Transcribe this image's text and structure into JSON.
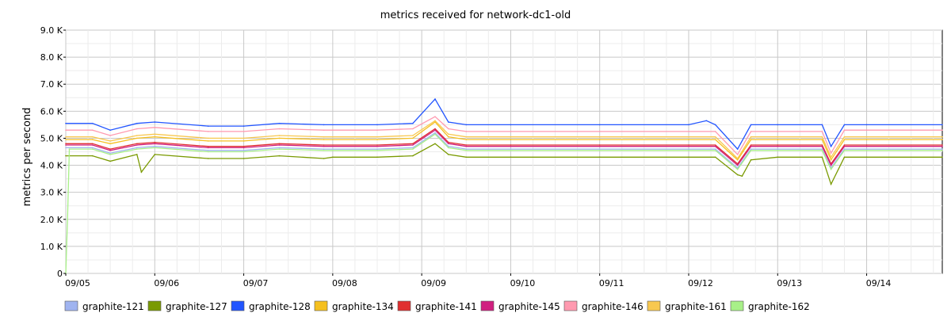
{
  "chart_data": {
    "type": "line",
    "title": "metrics received for network-dc1-old",
    "xlabel": "",
    "ylabel": "metrics per second",
    "ylim": [
      0,
      9000
    ],
    "yticks": [
      {
        "value": 0,
        "label": "0"
      },
      {
        "value": 1000,
        "label": "1.0 K"
      },
      {
        "value": 2000,
        "label": "2.0 K"
      },
      {
        "value": 3000,
        "label": "3.0 K"
      },
      {
        "value": 4000,
        "label": "4.0 K"
      },
      {
        "value": 5000,
        "label": "5.0 K"
      },
      {
        "value": 6000,
        "label": "6.0 K"
      },
      {
        "value": 7000,
        "label": "7.0 K"
      },
      {
        "value": 8000,
        "label": "8.0 K"
      },
      {
        "value": 9000,
        "label": "9.0 K"
      }
    ],
    "xlim": [
      0,
      9.85
    ],
    "xticks": [
      {
        "value": 0,
        "label": "09/05"
      },
      {
        "value": 1,
        "label": "09/06"
      },
      {
        "value": 2,
        "label": "09/07"
      },
      {
        "value": 3,
        "label": "09/08"
      },
      {
        "value": 4,
        "label": "09/09"
      },
      {
        "value": 5,
        "label": "09/10"
      },
      {
        "value": 6,
        "label": "09/11"
      },
      {
        "value": 7,
        "label": "09/12"
      },
      {
        "value": 8,
        "label": "09/13"
      },
      {
        "value": 9,
        "label": "09/14"
      }
    ],
    "grid": true,
    "legend_position": "bottom",
    "series": [
      {
        "name": "graphite-121",
        "color": "#a0b4f0",
        "x": [
          0,
          0.3,
          0.5,
          0.8,
          1,
          1.6,
          2,
          2.4,
          2.9,
          3.5,
          3.9,
          4.15,
          4.3,
          4.5,
          5,
          6,
          7,
          7.3,
          7.55,
          7.7,
          8,
          8.5,
          8.6,
          8.75,
          9,
          9.85
        ],
        "values": [
          4650,
          4650,
          4450,
          4650,
          4700,
          4550,
          4550,
          4650,
          4600,
          4600,
          4650,
          5200,
          4700,
          4600,
          4600,
          4600,
          4600,
          4600,
          3900,
          4600,
          4600,
          4600,
          3900,
          4600,
          4600,
          4600
        ]
      },
      {
        "name": "graphite-127",
        "color": "#7a9a01",
        "x": [
          0,
          0.3,
          0.5,
          0.8,
          0.85,
          1,
          1.6,
          2,
          2.4,
          2.9,
          3,
          3.5,
          3.9,
          4.15,
          4.3,
          4.5,
          5,
          6,
          7,
          7.3,
          7.55,
          7.6,
          7.7,
          8,
          8.5,
          8.6,
          8.75,
          9,
          9.85
        ],
        "values": [
          4350,
          4350,
          4150,
          4400,
          3750,
          4400,
          4250,
          4250,
          4350,
          4250,
          4300,
          4300,
          4350,
          4800,
          4400,
          4300,
          4300,
          4300,
          4300,
          4300,
          3650,
          3600,
          4200,
          4300,
          4300,
          3300,
          4300,
          4300,
          4300
        ]
      },
      {
        "name": "graphite-128",
        "color": "#2255ff",
        "x": [
          0,
          0.3,
          0.5,
          0.8,
          1,
          1.6,
          2,
          2.4,
          2.9,
          3.5,
          3.9,
          4.15,
          4.3,
          4.5,
          5,
          6,
          7,
          7.2,
          7.3,
          7.55,
          7.7,
          8,
          8.5,
          8.6,
          8.75,
          9,
          9.85
        ],
        "values": [
          5550,
          5550,
          5300,
          5550,
          5600,
          5450,
          5450,
          5550,
          5500,
          5500,
          5550,
          6450,
          5600,
          5500,
          5500,
          5500,
          5500,
          5650,
          5500,
          4600,
          5500,
          5500,
          5500,
          4700,
          5500,
          5500,
          5500
        ]
      },
      {
        "name": "graphite-134",
        "color": "#f5c020",
        "x": [
          0,
          0.3,
          0.5,
          0.8,
          1,
          1.6,
          2,
          2.4,
          2.9,
          3.5,
          3.9,
          4.15,
          4.3,
          4.5,
          5,
          6,
          7,
          7.3,
          7.55,
          7.7,
          8,
          8.5,
          8.6,
          8.75,
          9,
          9.85
        ],
        "values": [
          4950,
          4950,
          4800,
          5000,
          5050,
          4900,
          4900,
          5000,
          4950,
          4950,
          5000,
          5600,
          5050,
          4950,
          4950,
          4950,
          4950,
          4950,
          4200,
          4950,
          4950,
          4950,
          4200,
          4950,
          4950,
          4950
        ]
      },
      {
        "name": "graphite-141",
        "color": "#e03030",
        "x": [
          0,
          0.3,
          0.5,
          0.8,
          1,
          1.6,
          2,
          2.4,
          2.9,
          3.5,
          3.9,
          4.15,
          4.3,
          4.5,
          5,
          6,
          7,
          7.3,
          7.55,
          7.7,
          8,
          8.5,
          8.6,
          8.75,
          9,
          9.85
        ],
        "values": [
          4800,
          4800,
          4600,
          4800,
          4850,
          4700,
          4700,
          4800,
          4750,
          4750,
          4800,
          5350,
          4850,
          4750,
          4750,
          4750,
          4750,
          4750,
          4050,
          4750,
          4750,
          4750,
          4050,
          4750,
          4750,
          4750
        ]
      },
      {
        "name": "graphite-145",
        "color": "#d02080",
        "x": [
          0,
          0.3,
          0.5,
          0.8,
          1,
          1.6,
          2,
          2.4,
          2.9,
          3.5,
          3.9,
          4.15,
          4.3,
          4.5,
          5,
          6,
          7,
          7.3,
          7.55,
          7.7,
          8,
          8.5,
          8.6,
          8.75,
          9,
          9.85
        ],
        "values": [
          4750,
          4750,
          4550,
          4750,
          4800,
          4650,
          4650,
          4750,
          4700,
          4700,
          4750,
          5300,
          4800,
          4700,
          4700,
          4700,
          4700,
          4700,
          4000,
          4700,
          4700,
          4700,
          4000,
          4700,
          4700,
          4700
        ]
      },
      {
        "name": "graphite-146",
        "color": "#ff9ab0",
        "x": [
          0,
          0.3,
          0.5,
          0.8,
          1,
          1.6,
          2,
          2.4,
          2.9,
          3.5,
          3.9,
          4.15,
          4.3,
          4.5,
          5,
          6,
          7,
          7.3,
          7.55,
          7.7,
          8,
          8.5,
          8.6,
          8.75,
          9,
          9.85
        ],
        "values": [
          5300,
          5300,
          5100,
          5350,
          5400,
          5250,
          5250,
          5350,
          5300,
          5300,
          5350,
          5800,
          5350,
          5250,
          5250,
          5250,
          5250,
          5250,
          4400,
          5250,
          5250,
          5250,
          4450,
          5300,
          5300,
          5300
        ]
      },
      {
        "name": "graphite-161",
        "color": "#f8c850",
        "x": [
          0,
          0.3,
          0.5,
          0.8,
          1,
          1.6,
          2,
          2.4,
          2.9,
          3.5,
          3.9,
          4.15,
          4.3,
          4.5,
          5,
          6,
          7,
          7.3,
          7.55,
          7.7,
          8,
          8.5,
          8.6,
          8.75,
          9,
          9.85
        ],
        "values": [
          5050,
          5050,
          4900,
          5100,
          5150,
          5000,
          5000,
          5100,
          5050,
          5050,
          5100,
          5650,
          5150,
          5050,
          5050,
          5050,
          5050,
          5050,
          4250,
          5050,
          5050,
          5050,
          4300,
          5050,
          5050,
          5050
        ]
      },
      {
        "name": "graphite-162",
        "color": "#a8f088",
        "x": [
          0,
          0.02,
          0.04,
          0.3,
          0.5,
          0.8,
          1,
          1.6,
          2,
          2.4,
          2.9,
          3.5,
          3.9,
          4.15,
          4.3,
          4.5,
          5,
          6,
          7,
          7.3,
          7.55,
          7.7,
          8,
          8.5,
          8.6,
          8.75,
          9,
          9.85
        ],
        "values": [
          0,
          2000,
          4600,
          4600,
          4400,
          4600,
          4650,
          4500,
          4500,
          4600,
          4550,
          4550,
          4600,
          5150,
          4650,
          4550,
          4550,
          4550,
          4550,
          4550,
          3850,
          4550,
          4550,
          4550,
          3850,
          4550,
          4550,
          4550
        ]
      }
    ]
  }
}
